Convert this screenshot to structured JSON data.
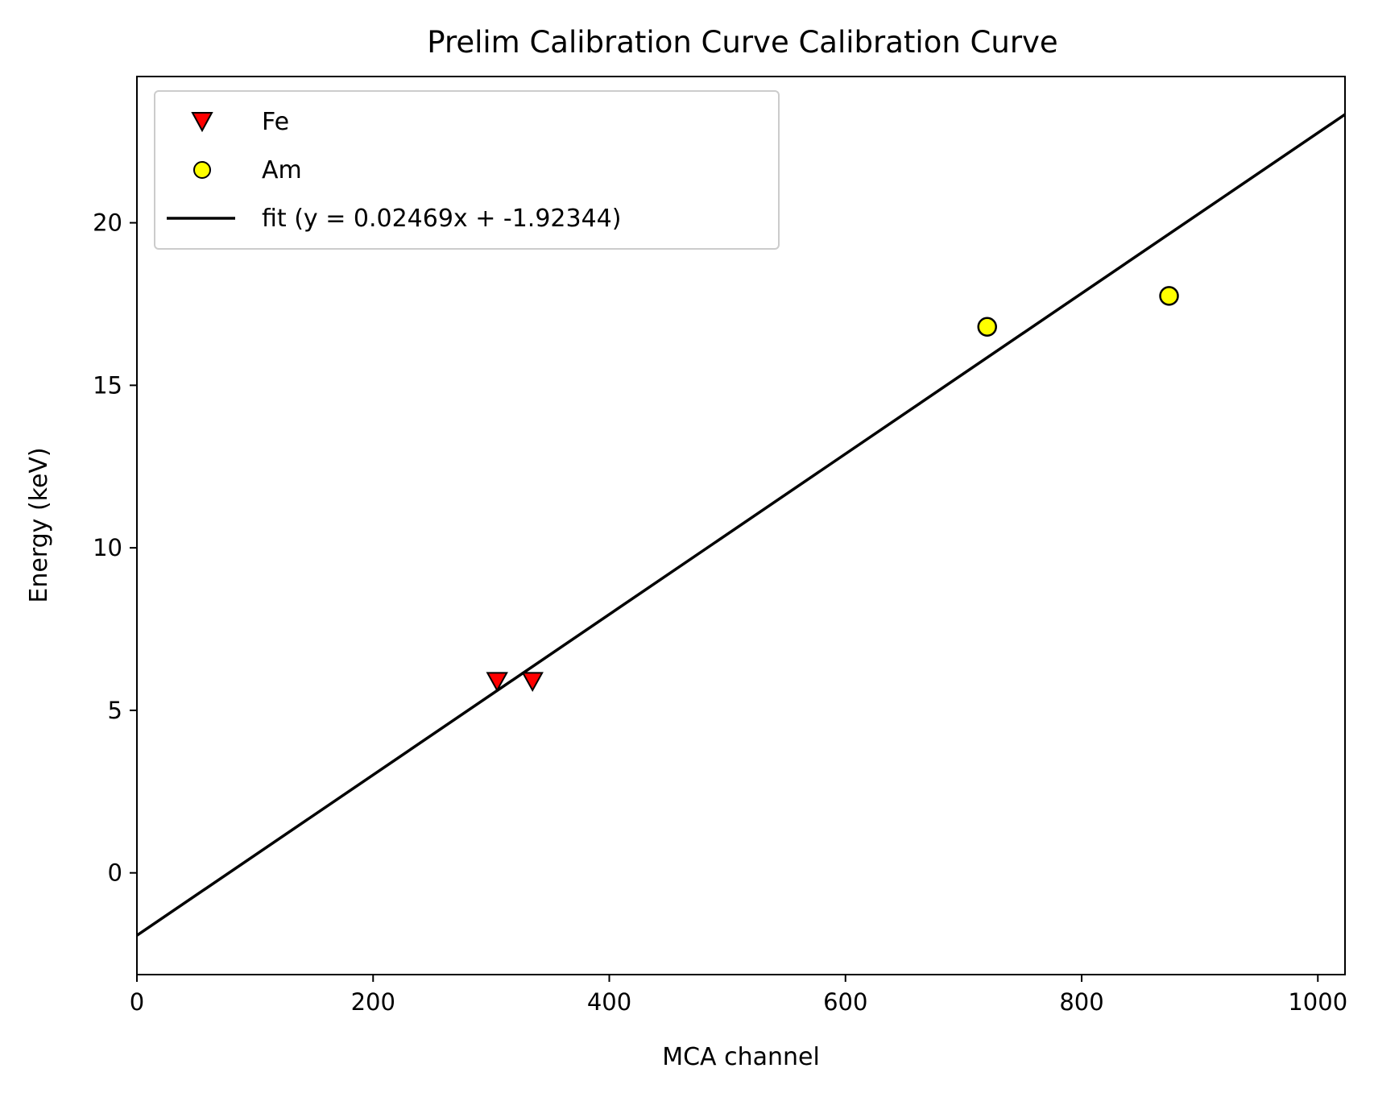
{
  "chart_data": {
    "type": "scatter",
    "title": "Prelim Calibration Curve Calibration Curve",
    "xlabel": "MCA channel",
    "ylabel": "Energy (keV)",
    "xlim": [
      0,
      1023
    ],
    "ylim": [
      -3.13,
      24.5
    ],
    "x_ticks": [
      0,
      200,
      400,
      600,
      800,
      1000
    ],
    "y_ticks": [
      0,
      5,
      10,
      15,
      20
    ],
    "grid": false,
    "legend_position": "upper-left",
    "series": [
      {
        "name": "Fe",
        "marker": "triangle-down",
        "color": "#ff0000",
        "x": [
          305,
          335
        ],
        "y": [
          5.9,
          5.9
        ]
      },
      {
        "name": "Am",
        "marker": "circle",
        "color": "#ffff00",
        "x": [
          720,
          874
        ],
        "y": [
          16.8,
          17.75
        ]
      }
    ],
    "fit": {
      "name": "fit (y = 0.02469x + -1.92344)",
      "slope": 0.02469,
      "intercept": -1.92344,
      "color": "#000000"
    }
  }
}
